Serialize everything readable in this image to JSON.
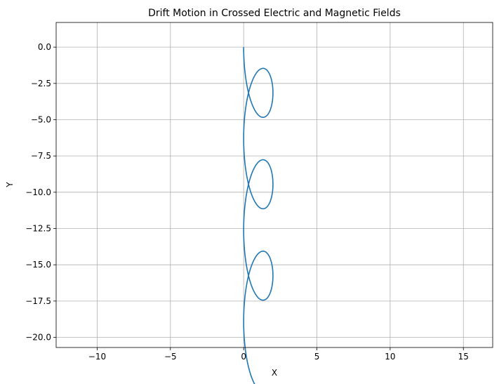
{
  "chart_data": {
    "type": "line",
    "title": "Drift Motion in Crossed Electric and Magnetic Fields",
    "xlabel": "X",
    "ylabel": "Y",
    "xlim": [
      -12.8,
      17.0
    ],
    "ylim": [
      -20.7,
      1.7
    ],
    "xticks": [
      -10,
      -5,
      0,
      5,
      10,
      15
    ],
    "xtick_labels": [
      "−10",
      "−5",
      "0",
      "5",
      "10",
      "15"
    ],
    "yticks": [
      0,
      -2.5,
      -5,
      -7.5,
      -10,
      -12.5,
      -15,
      -17.5,
      -20
    ],
    "ytick_labels": [
      "0.0",
      "−2.5",
      "−5.0",
      "−7.5",
      "−10.0",
      "−12.5",
      "−15.0",
      "−17.5",
      "−20.0"
    ],
    "grid": true,
    "line_color": "#1f77b4",
    "series": [
      {
        "curve": "trochoid",
        "x_center": 1.0,
        "y_start": 0.0,
        "radius": 3.1,
        "drift_per_cycle": -6.3,
        "cycles": 3.25,
        "x_range": [
          0.0,
          4.1
        ],
        "y_range": [
          -19.7,
          0.7
        ],
        "x_end": 1.0,
        "y_end": -18.0
      }
    ]
  }
}
